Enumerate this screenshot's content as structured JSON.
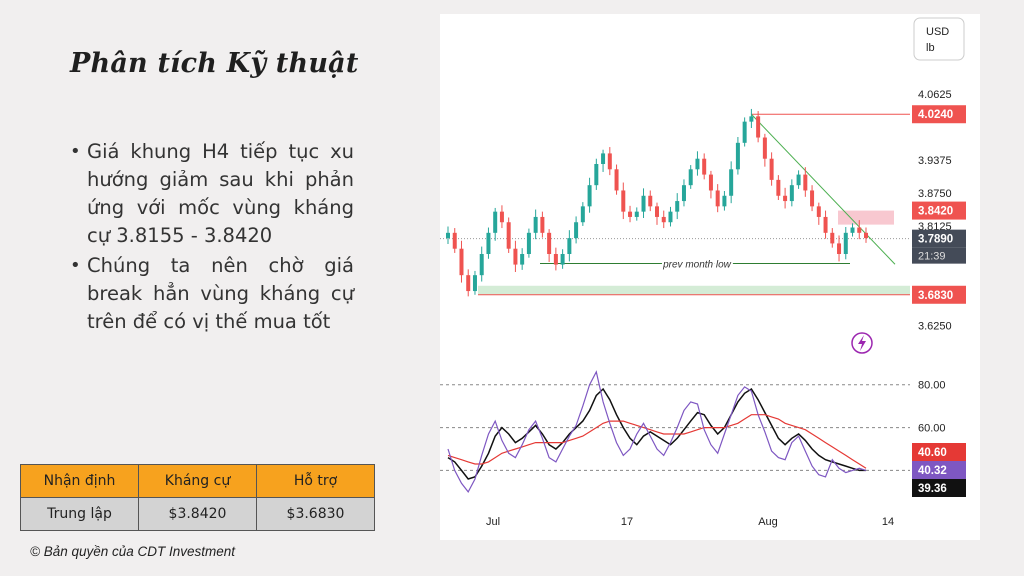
{
  "slide": {
    "title": "Phân tích Kỹ thuật",
    "bullets": [
      "Giá khung H4 tiếp tục xu hướng giảm sau khi phản ứng với mốc vùng kháng cự 3.8155 - 3.8420",
      "Chúng ta nên chờ giá break hẳn vùng kháng cự trên để có vị thế mua tốt"
    ],
    "table": {
      "headers": [
        "Nhận định",
        "Kháng cự",
        "Hỗ trợ"
      ],
      "row": [
        "Trung lập",
        "$3.8420",
        "$3.6830"
      ]
    },
    "copyright": "© Bản quyền của CDT Investment"
  },
  "colors": {
    "accent_orange": "#f7a21e",
    "bull": "#26a69a",
    "bear": "#ef5350",
    "resistance_zone": "#f8c8d0",
    "support_zone": "#d4ecd6",
    "indicator_line": "#7e57c2",
    "indicator_ma": "#e53935",
    "indicator_black": "#111111"
  },
  "chart_data": [
    {
      "type": "candlestick",
      "currency_label": "USD",
      "unit_label": "lb",
      "x_tick_labels": [
        "Jul",
        "17",
        "Aug",
        "14"
      ],
      "price_axis_ticks": [
        "4.0625",
        "3.9375",
        "3.8750",
        "3.8125",
        "3.6250"
      ],
      "ylim": [
        3.59,
        4.1
      ],
      "price_path": [
        3.8,
        3.77,
        3.72,
        3.69,
        3.72,
        3.76,
        3.8,
        3.84,
        3.82,
        3.77,
        3.74,
        3.76,
        3.8,
        3.83,
        3.8,
        3.76,
        3.74,
        3.76,
        3.79,
        3.82,
        3.85,
        3.89,
        3.93,
        3.95,
        3.92,
        3.88,
        3.84,
        3.83,
        3.84,
        3.87,
        3.85,
        3.83,
        3.82,
        3.84,
        3.86,
        3.89,
        3.92,
        3.94,
        3.91,
        3.88,
        3.85,
        3.87,
        3.92,
        3.97,
        4.01,
        4.02,
        3.98,
        3.94,
        3.9,
        3.87,
        3.86,
        3.89,
        3.91,
        3.88,
        3.85,
        3.83,
        3.8,
        3.78,
        3.76,
        3.8,
        3.81,
        3.8,
        3.79
      ],
      "price_labels": [
        {
          "text": "4.0240",
          "value": 4.024,
          "kind": "resistance"
        },
        {
          "text": "3.8420",
          "value": 3.842,
          "kind": "resistance"
        },
        {
          "text": "3.7890",
          "value": 3.789,
          "kind": "last"
        },
        {
          "text": "21:39",
          "kind": "countdown"
        },
        {
          "text": "3.6830",
          "value": 3.683,
          "kind": "support"
        }
      ],
      "resistance_zone": [
        3.8155,
        3.842
      ],
      "support_zone": [
        3.683,
        3.7
      ],
      "top_level": 4.024,
      "prev_month_low": {
        "label": "prev month low",
        "value": 3.742
      },
      "trendline": {
        "from_value": 4.024,
        "to_value": 3.752
      }
    },
    {
      "type": "line",
      "axis_ticks": [
        "80.00",
        "60.00"
      ],
      "ylim": [
        22,
        92
      ],
      "levels": [
        80,
        60,
        40
      ],
      "series": [
        {
          "values": [
            46,
            44,
            40,
            36,
            37,
            42,
            48,
            56,
            60,
            57,
            53,
            55,
            58,
            61,
            57,
            52,
            50,
            53,
            57,
            60,
            63,
            68,
            75,
            78,
            73,
            66,
            60,
            55,
            52,
            56,
            58,
            56,
            54,
            52,
            55,
            59,
            63,
            67,
            66,
            61,
            57,
            60,
            66,
            72,
            76,
            78,
            73,
            67,
            61,
            55,
            52,
            55,
            57,
            54,
            50,
            47,
            45,
            44,
            43,
            42,
            41,
            40,
            40
          ]
        },
        {
          "values": [
            47,
            46,
            45,
            44,
            43,
            43,
            44,
            46,
            48,
            49,
            50,
            51,
            52,
            53,
            53,
            53,
            53,
            53,
            54,
            55,
            56,
            58,
            60,
            62,
            63,
            63,
            63,
            62,
            61,
            60,
            59,
            58,
            57,
            57,
            57,
            57,
            58,
            59,
            60,
            60,
            60,
            60,
            61,
            62,
            64,
            66,
            66,
            66,
            65,
            64,
            62,
            61,
            60,
            59,
            57,
            55,
            53,
            51,
            49,
            47,
            45,
            43,
            41
          ]
        },
        {
          "values": [
            50,
            40,
            34,
            30,
            36,
            47,
            57,
            63,
            54,
            48,
            46,
            52,
            59,
            63,
            55,
            46,
            44,
            50,
            56,
            61,
            70,
            80,
            86,
            72,
            62,
            53,
            47,
            50,
            57,
            62,
            56,
            50,
            47,
            53,
            60,
            68,
            72,
            71,
            59,
            52,
            48,
            57,
            66,
            75,
            79,
            77,
            66,
            58,
            49,
            46,
            45,
            53,
            56,
            49,
            42,
            38,
            37,
            45,
            41,
            39,
            40,
            41,
            40
          ]
        }
      ],
      "value_labels": [
        "40.60",
        "40.32",
        "39.36"
      ]
    }
  ]
}
